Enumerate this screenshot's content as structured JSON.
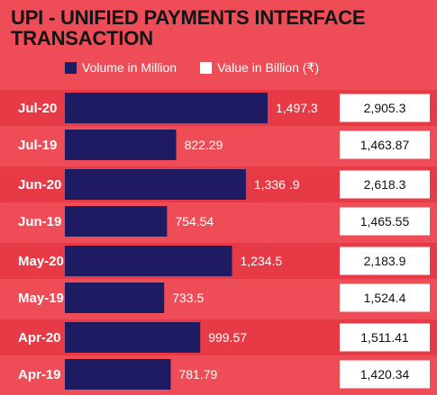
{
  "title": "UPI - UNIFIED PAYMENTS INTERFACE TRANSACTION",
  "colors": {
    "background": "#ee4d57",
    "band": "#e63b46",
    "volume_bar": "#1f1b62",
    "value_box": "#ffffff"
  },
  "legend": {
    "volume": "Volume in Million",
    "value": "Value in Billion (₹)"
  },
  "chart_data": {
    "type": "bar",
    "orientation": "horizontal",
    "categories": [
      "Jul-20",
      "Jul-19",
      "Jun-20",
      "Jun-19",
      "May-20",
      "May-19",
      "Apr-20",
      "Apr-19"
    ],
    "series": [
      {
        "name": "Volume in Million",
        "values": [
          1497.3,
          822.29,
          1336.9,
          754.54,
          1234.5,
          733.5,
          999.57,
          781.79
        ],
        "labels": [
          "1,497.3",
          "822.29",
          "1,336 .9",
          "754.54",
          "1,234.5",
          "733.5",
          "999.57",
          "781.79"
        ]
      },
      {
        "name": "Value in Billion (₹)",
        "values": [
          2905.3,
          1463.87,
          2618.3,
          1465.55,
          2183.9,
          1524.4,
          1511.41,
          1420.34
        ],
        "labels": [
          "2,905.3",
          "1,463.87",
          "2,618.3",
          "1,465.55",
          "2,183.9",
          "1,524.4",
          "1,511.41",
          "1,420.34"
        ]
      }
    ],
    "highlighted_categories": [
      "Jul-20",
      "Jun-20",
      "May-20",
      "Apr-20"
    ]
  }
}
